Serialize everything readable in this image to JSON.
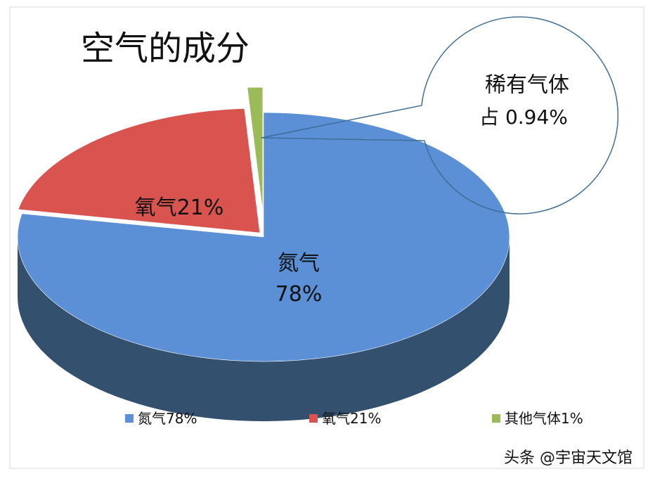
{
  "chart_data": {
    "type": "pie3d",
    "title": "空气的成分",
    "categories": [
      "氮气",
      "氧气",
      "其他气体"
    ],
    "values": [
      78,
      21,
      1
    ],
    "value_labels": [
      "78%",
      "21%",
      "1%"
    ],
    "colors": [
      "#5b8fd6",
      "#d9544f",
      "#9bbb59"
    ],
    "side_color": "#34506f",
    "annotation": [
      "稀有气体",
      "占 0.94%"
    ],
    "legend": "bottom"
  },
  "watermark": "头条 @宇宙天文馆"
}
